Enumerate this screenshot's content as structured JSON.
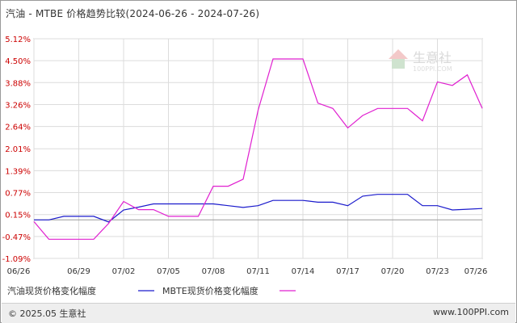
{
  "title": "汽油 - MTBE 价格趋势比较(2024-06-26 - 2024-07-26)",
  "watermark": {
    "text": "生意社",
    "sub": "100PPI.COM"
  },
  "footer": {
    "copyright": "© 2025.05 生意社",
    "site": "www.100PPI.com"
  },
  "colors": {
    "series1": "#1a1acc",
    "series2": "#e020d0",
    "grid": "#dcdcdc",
    "tick_text": "#cc0000",
    "axis_text": "#333333"
  },
  "chart_data": {
    "type": "line",
    "ylim": [
      -1.09,
      5.12
    ],
    "y_ticks": [
      "5.12%",
      "4.50%",
      "3.88%",
      "3.26%",
      "2.64%",
      "2.01%",
      "1.39%",
      "0.77%",
      "0.15%",
      "-0.47%",
      "-1.09%"
    ],
    "y_tick_values": [
      5.12,
      4.5,
      3.88,
      3.26,
      2.64,
      2.01,
      1.39,
      0.77,
      0.15,
      -0.47,
      -1.09
    ],
    "x_ticks": [
      "06/26",
      "06/29",
      "07/02",
      "07/05",
      "07/08",
      "07/11",
      "07/14",
      "07/17",
      "07/20",
      "07/23",
      "07/26"
    ],
    "x_tick_indices": [
      0,
      3,
      6,
      9,
      12,
      15,
      18,
      21,
      24,
      27,
      30
    ],
    "x_count": 31,
    "grid": true,
    "legend_position": "bottom-left",
    "series": [
      {
        "name": "汽油现货价格变化幅度",
        "points": [
          [
            0,
            0
          ],
          [
            1,
            0
          ],
          [
            2,
            0.1
          ],
          [
            3,
            0.1
          ],
          [
            4,
            0.1
          ],
          [
            5,
            -0.06
          ],
          [
            6,
            0.28
          ],
          [
            7,
            0.36
          ],
          [
            8,
            0.45
          ],
          [
            9,
            0.45
          ],
          [
            10,
            0.45
          ],
          [
            11,
            0.45
          ],
          [
            12,
            0.45
          ],
          [
            13,
            0.4
          ],
          [
            14,
            0.35
          ],
          [
            15,
            0.4
          ],
          [
            16,
            0.55
          ],
          [
            17,
            0.55
          ],
          [
            18,
            0.55
          ],
          [
            19,
            0.5
          ],
          [
            20,
            0.5
          ],
          [
            21,
            0.4
          ],
          [
            22,
            0.67
          ],
          [
            23,
            0.72
          ],
          [
            24,
            0.72
          ],
          [
            25,
            0.72
          ],
          [
            26,
            0.4
          ],
          [
            27,
            0.4
          ],
          [
            28,
            0.28
          ],
          [
            29,
            0.3
          ],
          [
            30,
            0.32
          ]
        ]
      },
      {
        "name": "MBTE现货价格变化幅度",
        "points": [
          [
            0,
            -0.05
          ],
          [
            1,
            -0.55
          ],
          [
            2,
            -0.55
          ],
          [
            3,
            -0.55
          ],
          [
            4,
            -0.55
          ],
          [
            5,
            -0.1
          ],
          [
            6,
            0.52
          ],
          [
            7,
            0.29
          ],
          [
            8,
            0.29
          ],
          [
            9,
            0.1
          ],
          [
            10,
            0.1
          ],
          [
            11,
            0.1
          ],
          [
            12,
            0.95
          ],
          [
            13,
            0.95
          ],
          [
            14,
            1.15
          ],
          [
            15,
            3.1
          ],
          [
            16,
            4.55
          ],
          [
            17,
            4.55
          ],
          [
            18,
            4.55
          ],
          [
            19,
            3.3
          ],
          [
            20,
            3.15
          ],
          [
            21,
            2.6
          ],
          [
            22,
            2.95
          ],
          [
            23,
            3.15
          ],
          [
            24,
            3.15
          ],
          [
            25,
            3.15
          ],
          [
            26,
            2.8
          ],
          [
            27,
            3.9
          ],
          [
            28,
            3.8
          ],
          [
            29,
            4.1
          ],
          [
            30,
            3.15
          ]
        ]
      }
    ]
  }
}
